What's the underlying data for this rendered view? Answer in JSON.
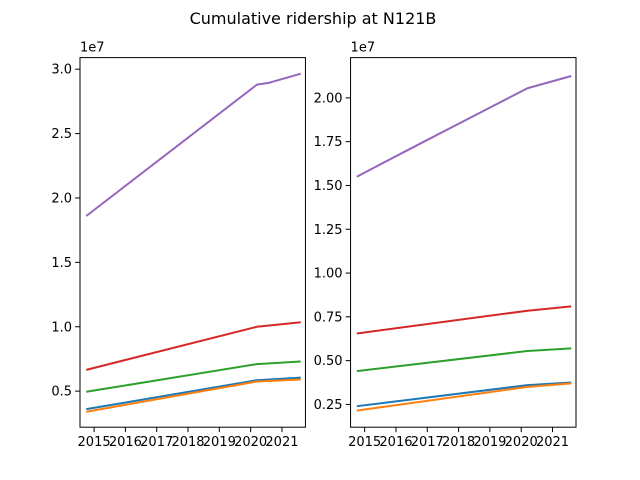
{
  "figure": {
    "title": "Cumulative ridership at N121B"
  },
  "chart_data": [
    {
      "type": "line",
      "title": "",
      "xlabel": "",
      "ylabel": "",
      "y_multiplier_label": "1e7",
      "xlim": [
        2014.55,
        2021.75
      ],
      "ylim": [
        2.2,
        30.9
      ],
      "x_ticks": [
        2015,
        2016,
        2017,
        2018,
        2019,
        2020,
        2021
      ],
      "x_tick_labels": [
        "2015",
        "2016",
        "2017",
        "2018",
        "2019",
        "2020",
        "2021"
      ],
      "y_ticks": [
        5,
        10,
        15,
        20,
        25,
        30
      ],
      "y_tick_labels": [
        "0.5",
        "1.0",
        "1.5",
        "2.0",
        "2.5",
        "3.0"
      ],
      "grid": false,
      "series": [
        {
          "color": "#1f77b4",
          "x": [
            2014.75,
            2020.2,
            2021.6
          ],
          "y": [
            3.6,
            5.85,
            6.05
          ]
        },
        {
          "color": "#ff7f0e",
          "x": [
            2014.75,
            2020.2,
            2021.6
          ],
          "y": [
            3.4,
            5.75,
            5.9
          ]
        },
        {
          "color": "#2ca02c",
          "x": [
            2014.75,
            2020.2,
            2021.6
          ],
          "y": [
            4.95,
            7.1,
            7.3
          ]
        },
        {
          "color": "#d62728",
          "x": [
            2014.75,
            2020.2,
            2021.6
          ],
          "y": [
            6.65,
            10.0,
            10.35
          ]
        },
        {
          "color": "#9467bd",
          "x": [
            2014.75,
            2020.2,
            2020.6,
            2021.6
          ],
          "y": [
            18.6,
            28.8,
            28.95,
            29.65
          ]
        }
      ]
    },
    {
      "type": "line",
      "title": "",
      "xlabel": "",
      "ylabel": "",
      "y_multiplier_label": "1e7",
      "xlim": [
        2014.55,
        2021.75
      ],
      "ylim": [
        1.2,
        22.3
      ],
      "x_ticks": [
        2015,
        2016,
        2017,
        2018,
        2019,
        2020,
        2021
      ],
      "x_tick_labels": [
        "2015",
        "2016",
        "2017",
        "2018",
        "2019",
        "2020",
        "2021"
      ],
      "y_ticks": [
        2.5,
        5.0,
        7.5,
        10.0,
        12.5,
        15.0,
        17.5,
        20.0
      ],
      "y_tick_labels": [
        "0.25",
        "0.50",
        "0.75",
        "1.00",
        "1.25",
        "1.50",
        "1.75",
        "2.00"
      ],
      "grid": false,
      "series": [
        {
          "color": "#1f77b4",
          "x": [
            2014.75,
            2020.2,
            2021.6
          ],
          "y": [
            2.4,
            3.6,
            3.75
          ]
        },
        {
          "color": "#ff7f0e",
          "x": [
            2014.75,
            2020.2,
            2021.6
          ],
          "y": [
            2.15,
            3.5,
            3.7
          ]
        },
        {
          "color": "#2ca02c",
          "x": [
            2014.75,
            2020.2,
            2021.6
          ],
          "y": [
            4.4,
            5.55,
            5.7
          ]
        },
        {
          "color": "#d62728",
          "x": [
            2014.75,
            2020.2,
            2021.6
          ],
          "y": [
            6.55,
            7.85,
            8.1
          ]
        },
        {
          "color": "#9467bd",
          "x": [
            2014.75,
            2016.3,
            2017.0,
            2020.2,
            2020.4,
            2021.6
          ],
          "y": [
            15.5,
            16.95,
            17.6,
            20.55,
            20.65,
            21.25
          ]
        }
      ]
    }
  ]
}
